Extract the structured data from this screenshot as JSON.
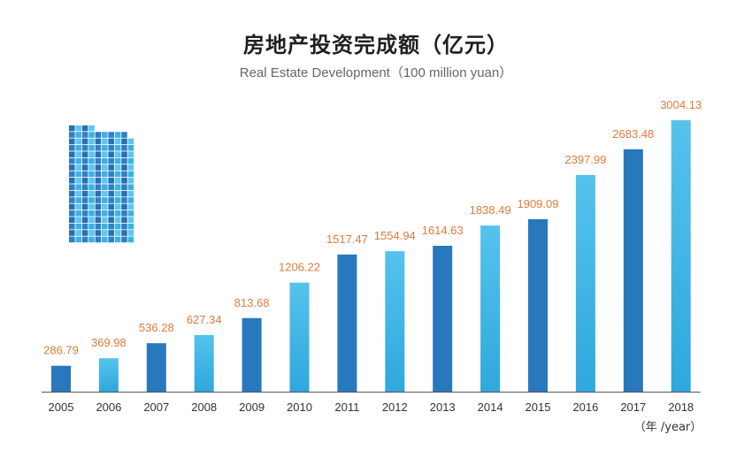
{
  "chart_data": {
    "type": "bar",
    "title": "房地产投资完成额（亿元）",
    "subtitle": "Real Estate Development（100 million yuan）",
    "x_unit_label": "（年 /year）",
    "categories": [
      "2005",
      "2006",
      "2007",
      "2008",
      "2009",
      "2010",
      "2011",
      "2012",
      "2013",
      "2014",
      "2015",
      "2016",
      "2017",
      "2018"
    ],
    "values": [
      286.79,
      369.98,
      536.28,
      627.34,
      813.68,
      1206.22,
      1517.47,
      1554.94,
      1614.63,
      1838.49,
      1909.09,
      2397.99,
      2683.48,
      3004.13
    ],
    "value_labels": [
      "286.79",
      "369.98",
      "536.28",
      "627.34",
      "813.68",
      "1206.22",
      "1517.47",
      "1554.94",
      "1614.63",
      "1838.49",
      "1909.09",
      "2397.99",
      "2683.48",
      "3004.13"
    ],
    "bar_style": [
      "dark",
      "light",
      "dark",
      "light",
      "dark",
      "light",
      "dark",
      "light",
      "dark",
      "light",
      "dark",
      "light",
      "dark",
      "light"
    ],
    "ylim": [
      0,
      3004.13
    ],
    "grid": false,
    "legend": "none",
    "colors": {
      "bar_dark": "#2878BE",
      "bar_light_top": "#55C3EC",
      "bar_light_bottom": "#2FA8DD",
      "value_label": "#E07B3A",
      "axis_label": "#333333",
      "baseline": "#555555"
    },
    "decoration": "building-icon"
  }
}
